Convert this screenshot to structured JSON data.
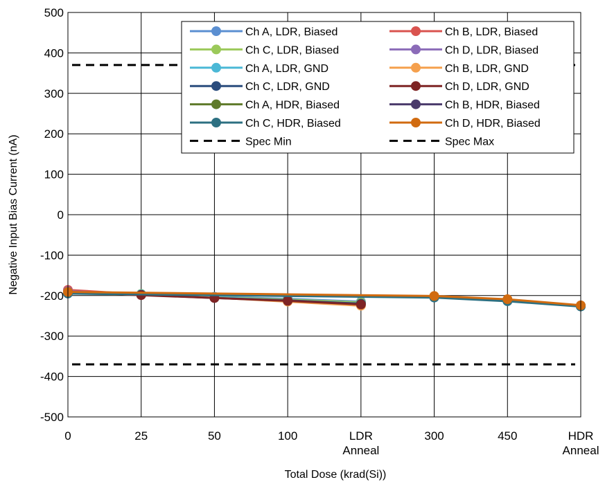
{
  "chart_data": {
    "type": "line",
    "xlabel": "Total Dose (krad(Si))",
    "ylabel": "Negative Input Bias Current (nA)",
    "ylim": [
      -500,
      500
    ],
    "yticks": [
      -500,
      -400,
      -300,
      -200,
      -100,
      0,
      100,
      200,
      300,
      400,
      500
    ],
    "categories": [
      [
        "0"
      ],
      [
        "25"
      ],
      [
        "50"
      ],
      [
        "100"
      ],
      [
        "LDR",
        "Anneal"
      ],
      [
        "300"
      ],
      [
        "450"
      ],
      [
        "HDR",
        "Anneal"
      ]
    ],
    "grid": true,
    "legend_position": "top-right",
    "series": [
      {
        "name": "Ch A, LDR, Biased",
        "color": "#5b8fd1",
        "values": [
          -190,
          -196,
          -203,
          -208,
          -215,
          null,
          null,
          null
        ]
      },
      {
        "name": "Ch B, LDR, Biased",
        "color": "#d9534f",
        "values": [
          -186,
          -197,
          -205,
          -211,
          -219,
          null,
          null,
          null
        ]
      },
      {
        "name": "Ch C, LDR, Biased",
        "color": "#9bc95a",
        "values": [
          -192,
          -196,
          -204,
          -210,
          -217,
          null,
          null,
          null
        ]
      },
      {
        "name": "Ch D, LDR, Biased",
        "color": "#8b6bb8",
        "values": [
          -189,
          -198,
          -205,
          -212,
          -220,
          null,
          null,
          null
        ]
      },
      {
        "name": "Ch A, LDR, GND",
        "color": "#4bb8d6",
        "values": [
          -193,
          -197,
          -204,
          -213,
          -222,
          null,
          null,
          null
        ]
      },
      {
        "name": "Ch B, LDR, GND",
        "color": "#f5a04d",
        "values": [
          -194,
          -198,
          -205,
          -215,
          -225,
          null,
          null,
          null
        ]
      },
      {
        "name": "Ch C, LDR, GND",
        "color": "#2a4c7d",
        "values": [
          -192,
          -198,
          -206,
          -212,
          -220,
          null,
          null,
          null
        ]
      },
      {
        "name": "Ch D, LDR, GND",
        "color": "#7e2424",
        "values": [
          -191,
          -199,
          -206,
          -213,
          -222,
          null,
          null,
          null
        ]
      },
      {
        "name": "Ch A, HDR, Biased",
        "color": "#5f7a2a",
        "values": [
          -193,
          null,
          null,
          null,
          null,
          -202,
          -210,
          -225
        ]
      },
      {
        "name": "Ch B, HDR, Biased",
        "color": "#4a3a6b",
        "values": [
          -193,
          null,
          null,
          null,
          null,
          -203,
          -211,
          -226
        ]
      },
      {
        "name": "Ch C, HDR, Biased",
        "color": "#2d7082",
        "values": [
          -195,
          null,
          null,
          null,
          null,
          -205,
          -214,
          -227
        ]
      },
      {
        "name": "Ch D, HDR, Biased",
        "color": "#d16b10",
        "values": [
          -191,
          null,
          null,
          null,
          null,
          -201,
          -209,
          -224
        ]
      },
      {
        "name": "Spec Min",
        "color": "#000000",
        "dashed": true,
        "values": [
          -370,
          -370,
          -370,
          -370,
          -370,
          -370,
          -370,
          -370
        ]
      },
      {
        "name": "Spec Max",
        "color": "#000000",
        "dashed": true,
        "values": [
          370,
          370,
          370,
          370,
          370,
          370,
          370,
          370
        ]
      }
    ]
  }
}
